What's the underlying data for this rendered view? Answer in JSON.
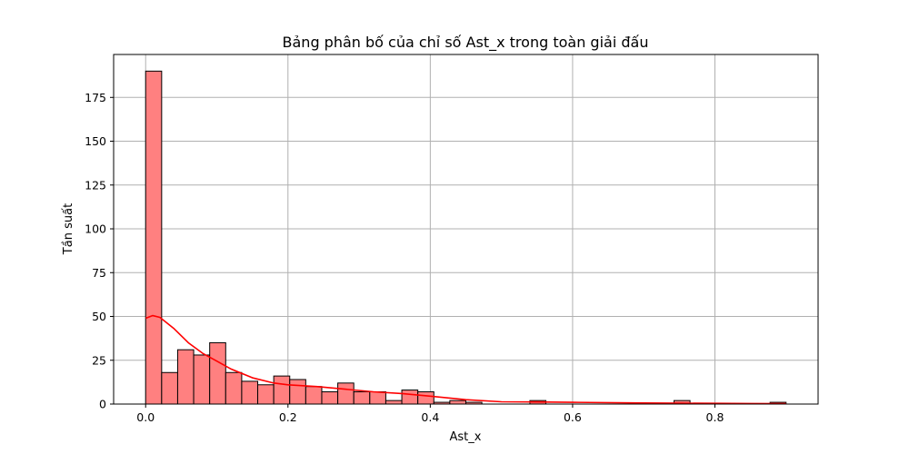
{
  "chart_data": {
    "type": "histogram",
    "title": "Bảng phân bố của chỉ số Ast_x trong toàn giải đấu",
    "xlabel": "Ast_x",
    "ylabel": "Tần suất",
    "xlim": [
      -0.045,
      0.945
    ],
    "ylim": [
      0,
      199.5
    ],
    "grid": true,
    "x_ticks": [
      0.0,
      0.2,
      0.4,
      0.6,
      0.8
    ],
    "x_tick_labels": [
      "0.0",
      "0.2",
      "0.4",
      "0.6",
      "0.8"
    ],
    "y_ticks": [
      0,
      25,
      50,
      75,
      100,
      125,
      150,
      175
    ],
    "y_tick_labels": [
      "0",
      "25",
      "50",
      "75",
      "100",
      "125",
      "150",
      "175"
    ],
    "bins": {
      "start": 0.0,
      "width": 0.0225,
      "counts": [
        190,
        18,
        31,
        28,
        35,
        18,
        13,
        11,
        16,
        14,
        10,
        7,
        12,
        7,
        7,
        2,
        8,
        7,
        1,
        2,
        1,
        0,
        0,
        0,
        2,
        0,
        0,
        0,
        0,
        0,
        0,
        0,
        0,
        2,
        0,
        0,
        0,
        0,
        0,
        1
      ]
    },
    "kde": {
      "x": [
        0.0,
        0.01,
        0.02,
        0.04,
        0.06,
        0.08,
        0.1,
        0.12,
        0.15,
        0.18,
        0.2,
        0.24,
        0.28,
        0.32,
        0.36,
        0.4,
        0.45,
        0.5,
        0.55,
        0.6,
        0.7,
        0.75,
        0.8,
        0.85,
        0.9
      ],
      "y": [
        49,
        50.5,
        49.5,
        43,
        35,
        29,
        24.5,
        20,
        15,
        12,
        11,
        10,
        8.5,
        7,
        6,
        4.5,
        2.5,
        1.3,
        1.2,
        1,
        0.6,
        0.5,
        0.4,
        0.3,
        0.2
      ]
    },
    "bar_color": "#ff8080",
    "bar_edge_color": "#000000",
    "kde_color": "#ff0000",
    "grid_color": "#b0b0b0"
  }
}
